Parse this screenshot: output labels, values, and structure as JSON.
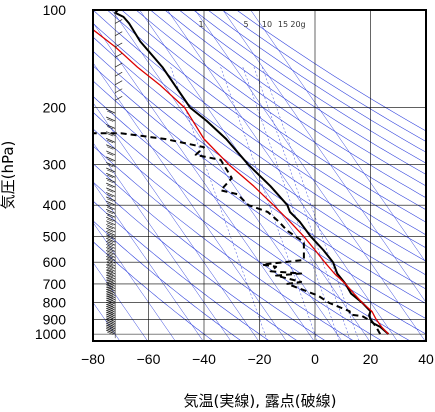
{
  "chart_data": {
    "type": "line",
    "title": "",
    "xlabel": "気温(実線), 露点(破線)",
    "ylabel": "気圧(hPa)",
    "xlim": [
      -80,
      40
    ],
    "ylim": [
      1050,
      100
    ],
    "yscale": "log",
    "x_ticks": [
      -80,
      -60,
      -40,
      -20,
      0,
      20,
      40
    ],
    "y_ticks": [
      100,
      200,
      300,
      400,
      500,
      600,
      700,
      800,
      900,
      1000
    ],
    "grid": true,
    "mixing_ratio_labels": [
      "1",
      "5",
      "10",
      "15",
      "20g"
    ],
    "colors": {
      "temperature": "#000000",
      "dewpoint": "#000000",
      "parcel": "#dd0000",
      "background_lines": "#3344dd",
      "grid": "#000000"
    },
    "series": [
      {
        "id": "temperature",
        "style": "solid",
        "points": [
          [
            26.5,
            1000
          ],
          [
            23.5,
            950
          ],
          [
            21,
            925
          ],
          [
            20,
            900
          ],
          [
            19.5,
            875
          ],
          [
            20,
            850
          ],
          [
            17,
            800
          ],
          [
            13,
            750
          ],
          [
            11,
            700
          ],
          [
            8,
            650
          ],
          [
            6.5,
            600
          ],
          [
            3,
            550
          ],
          [
            -1.5,
            500
          ],
          [
            -5.5,
            450
          ],
          [
            -9,
            420
          ],
          [
            -10,
            400
          ],
          [
            -16,
            350
          ],
          [
            -24,
            300
          ],
          [
            -32,
            250
          ],
          [
            -39,
            220
          ],
          [
            -45,
            200
          ],
          [
            -55,
            150
          ],
          [
            -63,
            125
          ],
          [
            -67,
            110
          ],
          [
            -69,
            105
          ],
          [
            -72,
            102
          ],
          [
            -71,
            100
          ]
        ]
      },
      {
        "id": "dewpoint",
        "style": "dashed",
        "points": [
          [
            23.5,
            1000
          ],
          [
            22,
            950
          ],
          [
            21,
            925
          ],
          [
            19,
            900
          ],
          [
            17,
            880
          ],
          [
            12.5,
            870
          ],
          [
            12.5,
            850
          ],
          [
            8,
            820
          ],
          [
            5,
            800
          ],
          [
            1,
            760
          ],
          [
            -10,
            700
          ],
          [
            -5,
            690
          ],
          [
            -14,
            660
          ],
          [
            -5,
            650
          ],
          [
            -16,
            640
          ],
          [
            -14,
            620
          ],
          [
            -19,
            610
          ],
          [
            -11,
            600
          ],
          [
            -4,
            590
          ],
          [
            -4,
            520
          ],
          [
            -10,
            480
          ],
          [
            -13,
            450
          ],
          [
            -17,
            420
          ],
          [
            -24,
            400
          ],
          [
            -28,
            370
          ],
          [
            -34,
            360
          ],
          [
            -30,
            330
          ],
          [
            -34,
            290
          ],
          [
            -43,
            280
          ],
          [
            -40,
            265
          ],
          [
            -54,
            250
          ],
          [
            -70,
            240
          ],
          [
            -82,
            240
          ]
        ]
      },
      {
        "id": "parcel",
        "style": "solid",
        "points": [
          [
            26.5,
            1000
          ],
          [
            24,
            950
          ],
          [
            22,
            900
          ],
          [
            20.5,
            850
          ],
          [
            17,
            800
          ],
          [
            14,
            750
          ],
          [
            11,
            700
          ],
          [
            7,
            650
          ],
          [
            3.5,
            600
          ],
          [
            0,
            550
          ],
          [
            -4,
            500
          ],
          [
            -9,
            450
          ],
          [
            -15,
            400
          ],
          [
            -22,
            350
          ],
          [
            -31,
            300
          ],
          [
            -40,
            250
          ],
          [
            -47,
            200
          ],
          [
            -56,
            170
          ],
          [
            -64,
            150
          ],
          [
            -72,
            130
          ],
          [
            -80,
            115
          ]
        ]
      }
    ],
    "wind_barbs_x": -72,
    "wind_barbs_pressure_range": [
      1000,
      100
    ]
  }
}
